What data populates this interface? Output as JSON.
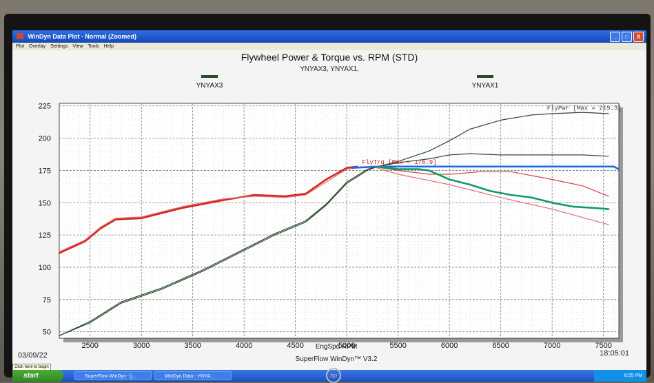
{
  "window": {
    "title": "WinDyn Data Plot - Normal  (Zoomed)",
    "controls": [
      "_",
      "□",
      "X"
    ]
  },
  "menu": [
    "Plot",
    "Overlay",
    "Settings",
    "View",
    "Tools",
    "Help"
  ],
  "footer": {
    "date": "03/09/22",
    "time": "18:05:01",
    "product": "SuperFlow WinDyn™ V3.2"
  },
  "taskbar": {
    "start": "start",
    "hint": "Click here to begin",
    "items": [
      "SuperFlow WinDyn - [...",
      "WinDyn Data - YNYA..."
    ],
    "clock": "6:05 PM"
  },
  "colors": {
    "plot_bg": "#ffffff",
    "dark_green": "#2c4a2c",
    "red": "#d42424",
    "blue": "#1a6ae8",
    "teal": "#0e9a6c"
  },
  "chart_data": {
    "type": "line",
    "title": "Flywheel Power & Torque vs. RPM (STD)",
    "subtitle": "YNYAX3, YNYAX1,",
    "xlabel": "EngSpd RPM",
    "ylabel": "",
    "xlim": [
      2200,
      7650
    ],
    "ylim": [
      45,
      227
    ],
    "x_ticks": [
      2500,
      3000,
      3500,
      4000,
      4500,
      5000,
      5500,
      6000,
      6500,
      7000,
      7500
    ],
    "y_ticks": [
      50,
      75,
      100,
      125,
      150,
      175,
      200,
      225
    ],
    "grid": true,
    "legend": [
      {
        "label": "YNYAX3",
        "color": "#2c4a2c"
      },
      {
        "label": "YNYAX1",
        "color": "#2c4a2c"
      }
    ],
    "annotations": [
      {
        "text": "FlyPwr [Max = 219.3]",
        "color": "#3a3a3a",
        "x": 6950,
        "y": 222
      },
      {
        "text": "FlyTrq [Max = 176.9]",
        "color": "#c02020",
        "x": 5150,
        "y": 180
      }
    ],
    "series": [
      {
        "color": "#2c4a2c",
        "style": "solid-thin",
        "x": [
          2200,
          2500,
          2800,
          3200,
          3600,
          4000,
          4300,
          4600,
          4800,
          5000,
          5200,
          5300,
          5500,
          5800,
          6000,
          6200,
          6500,
          6800,
          7000,
          7300,
          7550
        ],
        "y": [
          47,
          57,
          72,
          83,
          97,
          113,
          125,
          135,
          148,
          165,
          175,
          178,
          182,
          190,
          198,
          207,
          214,
          218,
          219,
          220,
          219
        ]
      },
      {
        "color": "#2c4a2c",
        "style": "solid-thin",
        "x": [
          2200,
          2500,
          2800,
          3200,
          3600,
          4000,
          4300,
          4600,
          4800,
          5000,
          5200,
          5300,
          5500,
          5800,
          6000,
          6200,
          6500,
          6800,
          7000,
          7300,
          7550
        ],
        "y": [
          47,
          58,
          73,
          84,
          98,
          114,
          126,
          136,
          149,
          166,
          176,
          178,
          181,
          184,
          187,
          188,
          187,
          187,
          187,
          187,
          186
        ]
      },
      {
        "color": "#d42424",
        "style": "solid-bold",
        "x": [
          2200,
          2450,
          2600,
          2750,
          3000,
          3400,
          3800,
          4100,
          4400,
          4600,
          4800,
          5000,
          5100
        ],
        "y": [
          111,
          120,
          130,
          137,
          138,
          146,
          152,
          156,
          155,
          157,
          168,
          177,
          178
        ]
      },
      {
        "color": "#e07070",
        "style": "solid-thin",
        "x": [
          2200,
          2450,
          2600,
          2750,
          3000,
          3400,
          3800,
          4100,
          4400,
          4600,
          4800,
          5000,
          5100,
          5250,
          5500,
          6000,
          6500,
          7000,
          7550
        ],
        "y": [
          112,
          121,
          131,
          138,
          139,
          147,
          153,
          155,
          154,
          156,
          166,
          176,
          177,
          178,
          172,
          164,
          154,
          145,
          133
        ]
      },
      {
        "color": "#d04040",
        "style": "solid-thin",
        "x": [
          5250,
          5500,
          5800,
          6000,
          6300,
          6600,
          7000,
          7300,
          7550
        ],
        "y": [
          178,
          175,
          172,
          172,
          174,
          174,
          168,
          163,
          155
        ]
      },
      {
        "color": "#1a6ae8",
        "style": "solid-bold",
        "x": [
          5050,
          5300,
          5600,
          6000,
          6500,
          7000,
          7300,
          7500,
          7600,
          7650
        ],
        "y": [
          177,
          178,
          178,
          178,
          178,
          178,
          178,
          178,
          178,
          176
        ]
      },
      {
        "color": "#0e9a6c",
        "style": "solid-bold",
        "x": [
          5300,
          5500,
          5700,
          5800,
          6000,
          6200,
          6400,
          6600,
          6800,
          7000,
          7200,
          7400,
          7550
        ],
        "y": [
          178,
          176,
          176,
          175,
          168,
          164,
          159,
          156,
          154,
          150,
          147,
          146,
          145
        ]
      }
    ]
  }
}
